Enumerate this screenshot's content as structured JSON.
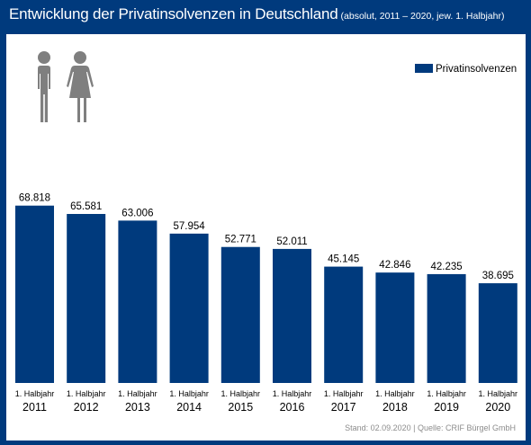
{
  "title": "Entwicklung der Privatinsolvenzen in Deutschland",
  "subtitle": "(absolut, 2011 – 2020, jew. 1. Halbjahr)",
  "source": "Stand: 02.09.2020 | Quelle: CRIF Bürgel GmbH",
  "icons": [
    "male-person-icon",
    "female-person-icon"
  ],
  "colors": {
    "frame": "#003a7d",
    "bar": "#003a7d",
    "icon": "#7f7f7f"
  },
  "chart_data": {
    "type": "bar",
    "categories": [
      "2011",
      "2012",
      "2013",
      "2014",
      "2015",
      "2016",
      "2017",
      "2018",
      "2019",
      "2020"
    ],
    "category_sublabel": "1. Halbjahr",
    "series": [
      {
        "name": "Privatinsolvenzen",
        "values": [
          68818,
          65581,
          63006,
          57954,
          52771,
          52011,
          45145,
          42846,
          42235,
          38695
        ],
        "labels": [
          "68.818",
          "65.581",
          "63.006",
          "57.954",
          "52.771",
          "52.011",
          "45.145",
          "42.846",
          "42.235",
          "38.695"
        ]
      }
    ],
    "ylim": [
      0,
      75000
    ],
    "grid": false,
    "legend": "top-right",
    "xlabel": "",
    "ylabel": ""
  }
}
